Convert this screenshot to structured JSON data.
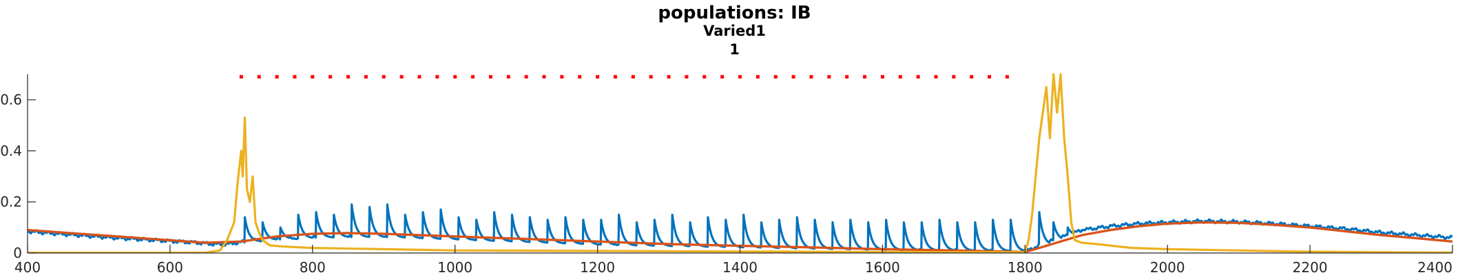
{
  "chart_data": {
    "type": "line",
    "title": "populations: IB",
    "subtitle": "Varied1",
    "subtitle2": "1",
    "xlim": [
      400,
      2400
    ],
    "ylim": [
      0,
      0.7
    ],
    "xticks": [
      400,
      600,
      800,
      1000,
      1200,
      1400,
      1600,
      1800,
      2000,
      2200,
      2400
    ],
    "xtick_labels": [
      "400",
      "600",
      "800",
      "1000",
      "1200",
      "1400",
      "1600",
      "1800",
      "2000",
      "2200",
      "2400"
    ],
    "yticks": [
      0,
      0.2,
      0.4,
      0.6
    ],
    "ytick_labels": [
      "0",
      "0.2",
      "0.4",
      "0.6"
    ],
    "grid": false,
    "colors": {
      "blue": "#0072BD",
      "orange": "#D95319",
      "yellow": "#EDB120",
      "red": "#FF0000",
      "axis": "#262626"
    },
    "series": [
      {
        "color": "#0072BD",
        "points": [
          [
            400,
            0.085
          ],
          [
            430,
            0.078
          ],
          [
            460,
            0.072
          ],
          [
            490,
            0.066
          ],
          [
            520,
            0.06
          ],
          [
            550,
            0.055
          ],
          [
            580,
            0.05
          ],
          [
            610,
            0.045
          ],
          [
            640,
            0.04
          ],
          [
            660,
            0.035
          ],
          [
            680,
            0.035
          ],
          [
            720,
            0.05
          ],
          [
            760,
            0.055
          ],
          [
            800,
            0.06
          ],
          [
            850,
            0.062
          ],
          [
            900,
            0.06
          ],
          [
            950,
            0.055
          ],
          [
            1000,
            0.05
          ],
          [
            1100,
            0.04
          ],
          [
            1200,
            0.03
          ],
          [
            1300,
            0.025
          ],
          [
            1400,
            0.02
          ],
          [
            1500,
            0.015
          ],
          [
            1600,
            0.01
          ],
          [
            1700,
            0.008
          ],
          [
            1800,
            0.005
          ],
          [
            1820,
            0.03
          ],
          [
            1850,
            0.06
          ],
          [
            1880,
            0.09
          ],
          [
            1920,
            0.105
          ],
          [
            1960,
            0.115
          ],
          [
            2000,
            0.12
          ],
          [
            2050,
            0.125
          ],
          [
            2100,
            0.122
          ],
          [
            2150,
            0.115
          ],
          [
            2200,
            0.105
          ],
          [
            2250,
            0.095
          ],
          [
            2300,
            0.08
          ],
          [
            2350,
            0.07
          ],
          [
            2400,
            0.06
          ]
        ],
        "spike_times": [
          705,
          730,
          755,
          780,
          805,
          830,
          855,
          880,
          905,
          930,
          955,
          980,
          1005,
          1030,
          1055,
          1080,
          1105,
          1130,
          1155,
          1180,
          1205,
          1230,
          1255,
          1280,
          1305,
          1330,
          1355,
          1380,
          1405,
          1430,
          1455,
          1480,
          1505,
          1530,
          1555,
          1580,
          1605,
          1630,
          1655,
          1680,
          1705,
          1730,
          1755,
          1780,
          1820,
          1840,
          1860,
          1880,
          1900
        ],
        "spike_heights": [
          0.14,
          0.12,
          0.1,
          0.15,
          0.16,
          0.15,
          0.19,
          0.18,
          0.19,
          0.15,
          0.16,
          0.17,
          0.14,
          0.13,
          0.16,
          0.15,
          0.14,
          0.13,
          0.14,
          0.13,
          0.13,
          0.15,
          0.12,
          0.13,
          0.15,
          0.12,
          0.14,
          0.13,
          0.15,
          0.12,
          0.13,
          0.14,
          0.13,
          0.12,
          0.13,
          0.12,
          0.13,
          0.12,
          0.12,
          0.13,
          0.12,
          0.12,
          0.13,
          0.13,
          0.16,
          0.12,
          0.1,
          0.09,
          0.08
        ]
      },
      {
        "color": "#D95319",
        "points": [
          [
            400,
            0.09
          ],
          [
            450,
            0.08
          ],
          [
            500,
            0.07
          ],
          [
            550,
            0.06
          ],
          [
            600,
            0.05
          ],
          [
            650,
            0.04
          ],
          [
            700,
            0.045
          ],
          [
            750,
            0.065
          ],
          [
            800,
            0.075
          ],
          [
            850,
            0.078
          ],
          [
            900,
            0.075
          ],
          [
            950,
            0.07
          ],
          [
            1000,
            0.065
          ],
          [
            1100,
            0.055
          ],
          [
            1200,
            0.045
          ],
          [
            1300,
            0.035
          ],
          [
            1400,
            0.028
          ],
          [
            1500,
            0.022
          ],
          [
            1600,
            0.015
          ],
          [
            1700,
            0.01
          ],
          [
            1780,
            0.005
          ],
          [
            1800,
            0.004
          ],
          [
            1820,
            0.02
          ],
          [
            1850,
            0.045
          ],
          [
            1880,
            0.07
          ],
          [
            1920,
            0.09
          ],
          [
            1960,
            0.105
          ],
          [
            2000,
            0.115
          ],
          [
            2050,
            0.12
          ],
          [
            2100,
            0.118
          ],
          [
            2150,
            0.11
          ],
          [
            2200,
            0.1
          ],
          [
            2250,
            0.085
          ],
          [
            2300,
            0.07
          ],
          [
            2350,
            0.058
          ],
          [
            2400,
            0.045
          ]
        ]
      },
      {
        "color": "#EDB120",
        "points": [
          [
            400,
            0.001
          ],
          [
            600,
            0.001
          ],
          [
            650,
            0.002
          ],
          [
            670,
            0.01
          ],
          [
            680,
            0.05
          ],
          [
            690,
            0.12
          ],
          [
            695,
            0.28
          ],
          [
            700,
            0.4
          ],
          [
            702,
            0.3
          ],
          [
            705,
            0.53
          ],
          [
            708,
            0.25
          ],
          [
            712,
            0.2
          ],
          [
            716,
            0.3
          ],
          [
            720,
            0.12
          ],
          [
            725,
            0.08
          ],
          [
            730,
            0.05
          ],
          [
            740,
            0.03
          ],
          [
            760,
            0.025
          ],
          [
            800,
            0.02
          ],
          [
            900,
            0.015
          ],
          [
            1000,
            0.01
          ],
          [
            1200,
            0.008
          ],
          [
            1400,
            0.006
          ],
          [
            1600,
            0.004
          ],
          [
            1780,
            0.003
          ],
          [
            1800,
            0.003
          ],
          [
            1805,
            0.05
          ],
          [
            1810,
            0.15
          ],
          [
            1815,
            0.3
          ],
          [
            1820,
            0.45
          ],
          [
            1825,
            0.55
          ],
          [
            1830,
            0.65
          ],
          [
            1835,
            0.45
          ],
          [
            1840,
            0.7
          ],
          [
            1845,
            0.55
          ],
          [
            1850,
            0.7
          ],
          [
            1855,
            0.45
          ],
          [
            1860,
            0.3
          ],
          [
            1865,
            0.12
          ],
          [
            1870,
            0.05
          ],
          [
            1880,
            0.04
          ],
          [
            1900,
            0.035
          ],
          [
            1950,
            0.02
          ],
          [
            2000,
            0.015
          ],
          [
            2100,
            0.01
          ],
          [
            2200,
            0.005
          ],
          [
            2300,
            0.003
          ],
          [
            2400,
            0.002
          ]
        ]
      }
    ],
    "markers": {
      "color": "#FF0000",
      "y": 0.69,
      "x": [
        700,
        725,
        750,
        775,
        800,
        825,
        850,
        875,
        900,
        925,
        950,
        975,
        1000,
        1025,
        1050,
        1075,
        1100,
        1125,
        1150,
        1175,
        1200,
        1225,
        1250,
        1275,
        1300,
        1325,
        1350,
        1375,
        1400,
        1425,
        1450,
        1475,
        1500,
        1525,
        1550,
        1575,
        1600,
        1625,
        1650,
        1675,
        1700,
        1725,
        1750,
        1775
      ]
    }
  }
}
